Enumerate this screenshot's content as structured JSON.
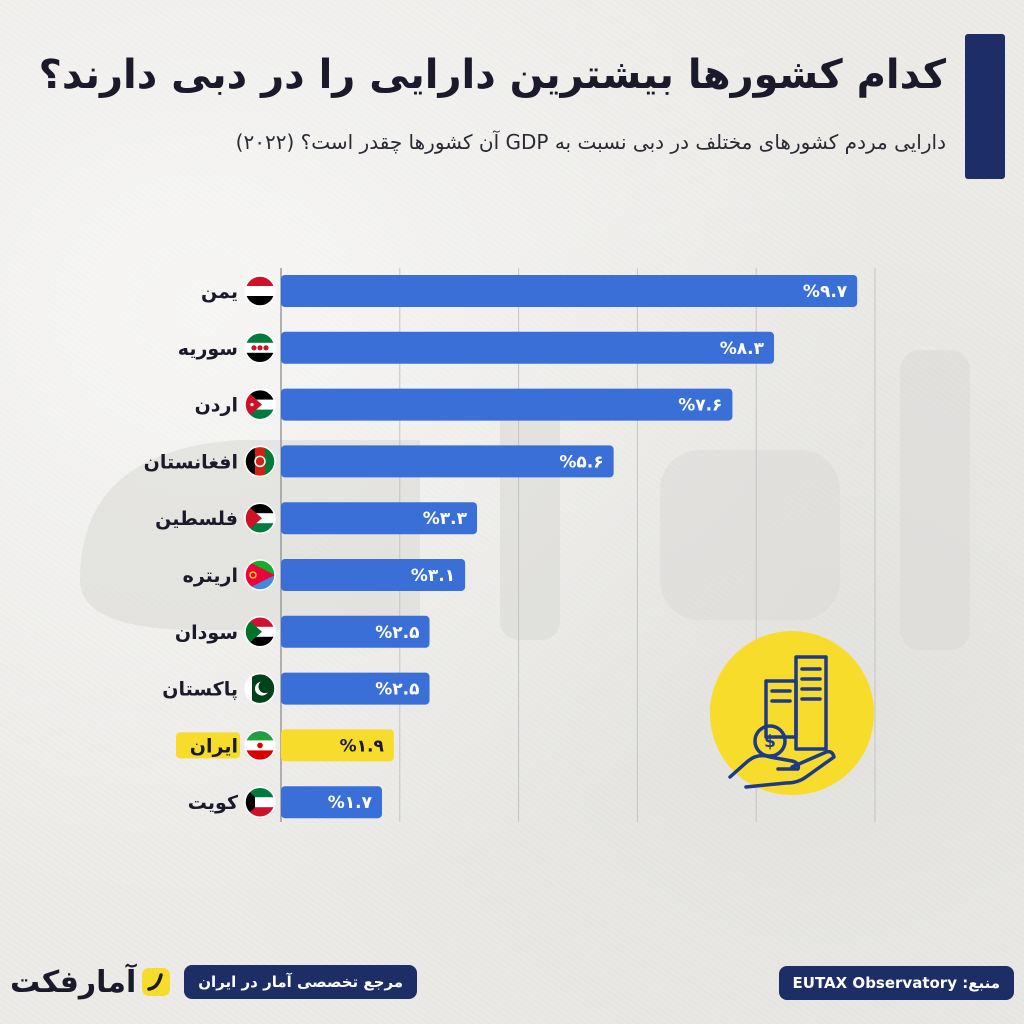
{
  "header": {
    "title": "کدام کشورها بیشترین دارایی را در دبی دارند؟",
    "subtitle": "دارایی مردم کشورهای مختلف در دبی نسبت به GDP آن کشورها چقدر است؟ (۲۰۲۲)"
  },
  "colors": {
    "bar": "#3a6fd8",
    "highlight": "#f8dc2c",
    "navy": "#1d2d66",
    "yellow": "#f8dc2c"
  },
  "chart_data": {
    "type": "bar",
    "orientation": "horizontal",
    "categories": [
      "یمن",
      "سوریه",
      "اردن",
      "افغانستان",
      "فلسطین",
      "اریتره",
      "سودان",
      "پاکستان",
      "ایران",
      "کویت"
    ],
    "values": [
      9.7,
      8.3,
      7.6,
      5.6,
      3.3,
      3.1,
      2.5,
      2.5,
      1.9,
      1.7
    ],
    "value_labels": [
      "%۹.۷",
      "%۸.۳",
      "%۷.۶",
      "%۵.۶",
      "%۳.۳",
      "%۳.۱",
      "%۲.۵",
      "%۲.۵",
      "%۱.۹",
      "%۱.۷"
    ],
    "highlight_index": 8,
    "xlim": [
      0,
      10
    ],
    "grid": true,
    "flags": [
      "yemen-flag-icon",
      "syria-flag-icon",
      "jordan-flag-icon",
      "afghanistan-flag-icon",
      "palestine-flag-icon",
      "eritrea-flag-icon",
      "sudan-flag-icon",
      "pakistan-flag-icon",
      "iran-flag-icon",
      "kuwait-flag-icon"
    ]
  },
  "footer": {
    "brand_logo": "آمارفکت",
    "tagline": "مرجع تخصصی آمار در ایران",
    "source_label": "منبع:",
    "source_value": "EUTAX Observatory"
  },
  "icons": {
    "feature": "building-money-hand-icon",
    "watermark": "brand-watermark-icon"
  }
}
